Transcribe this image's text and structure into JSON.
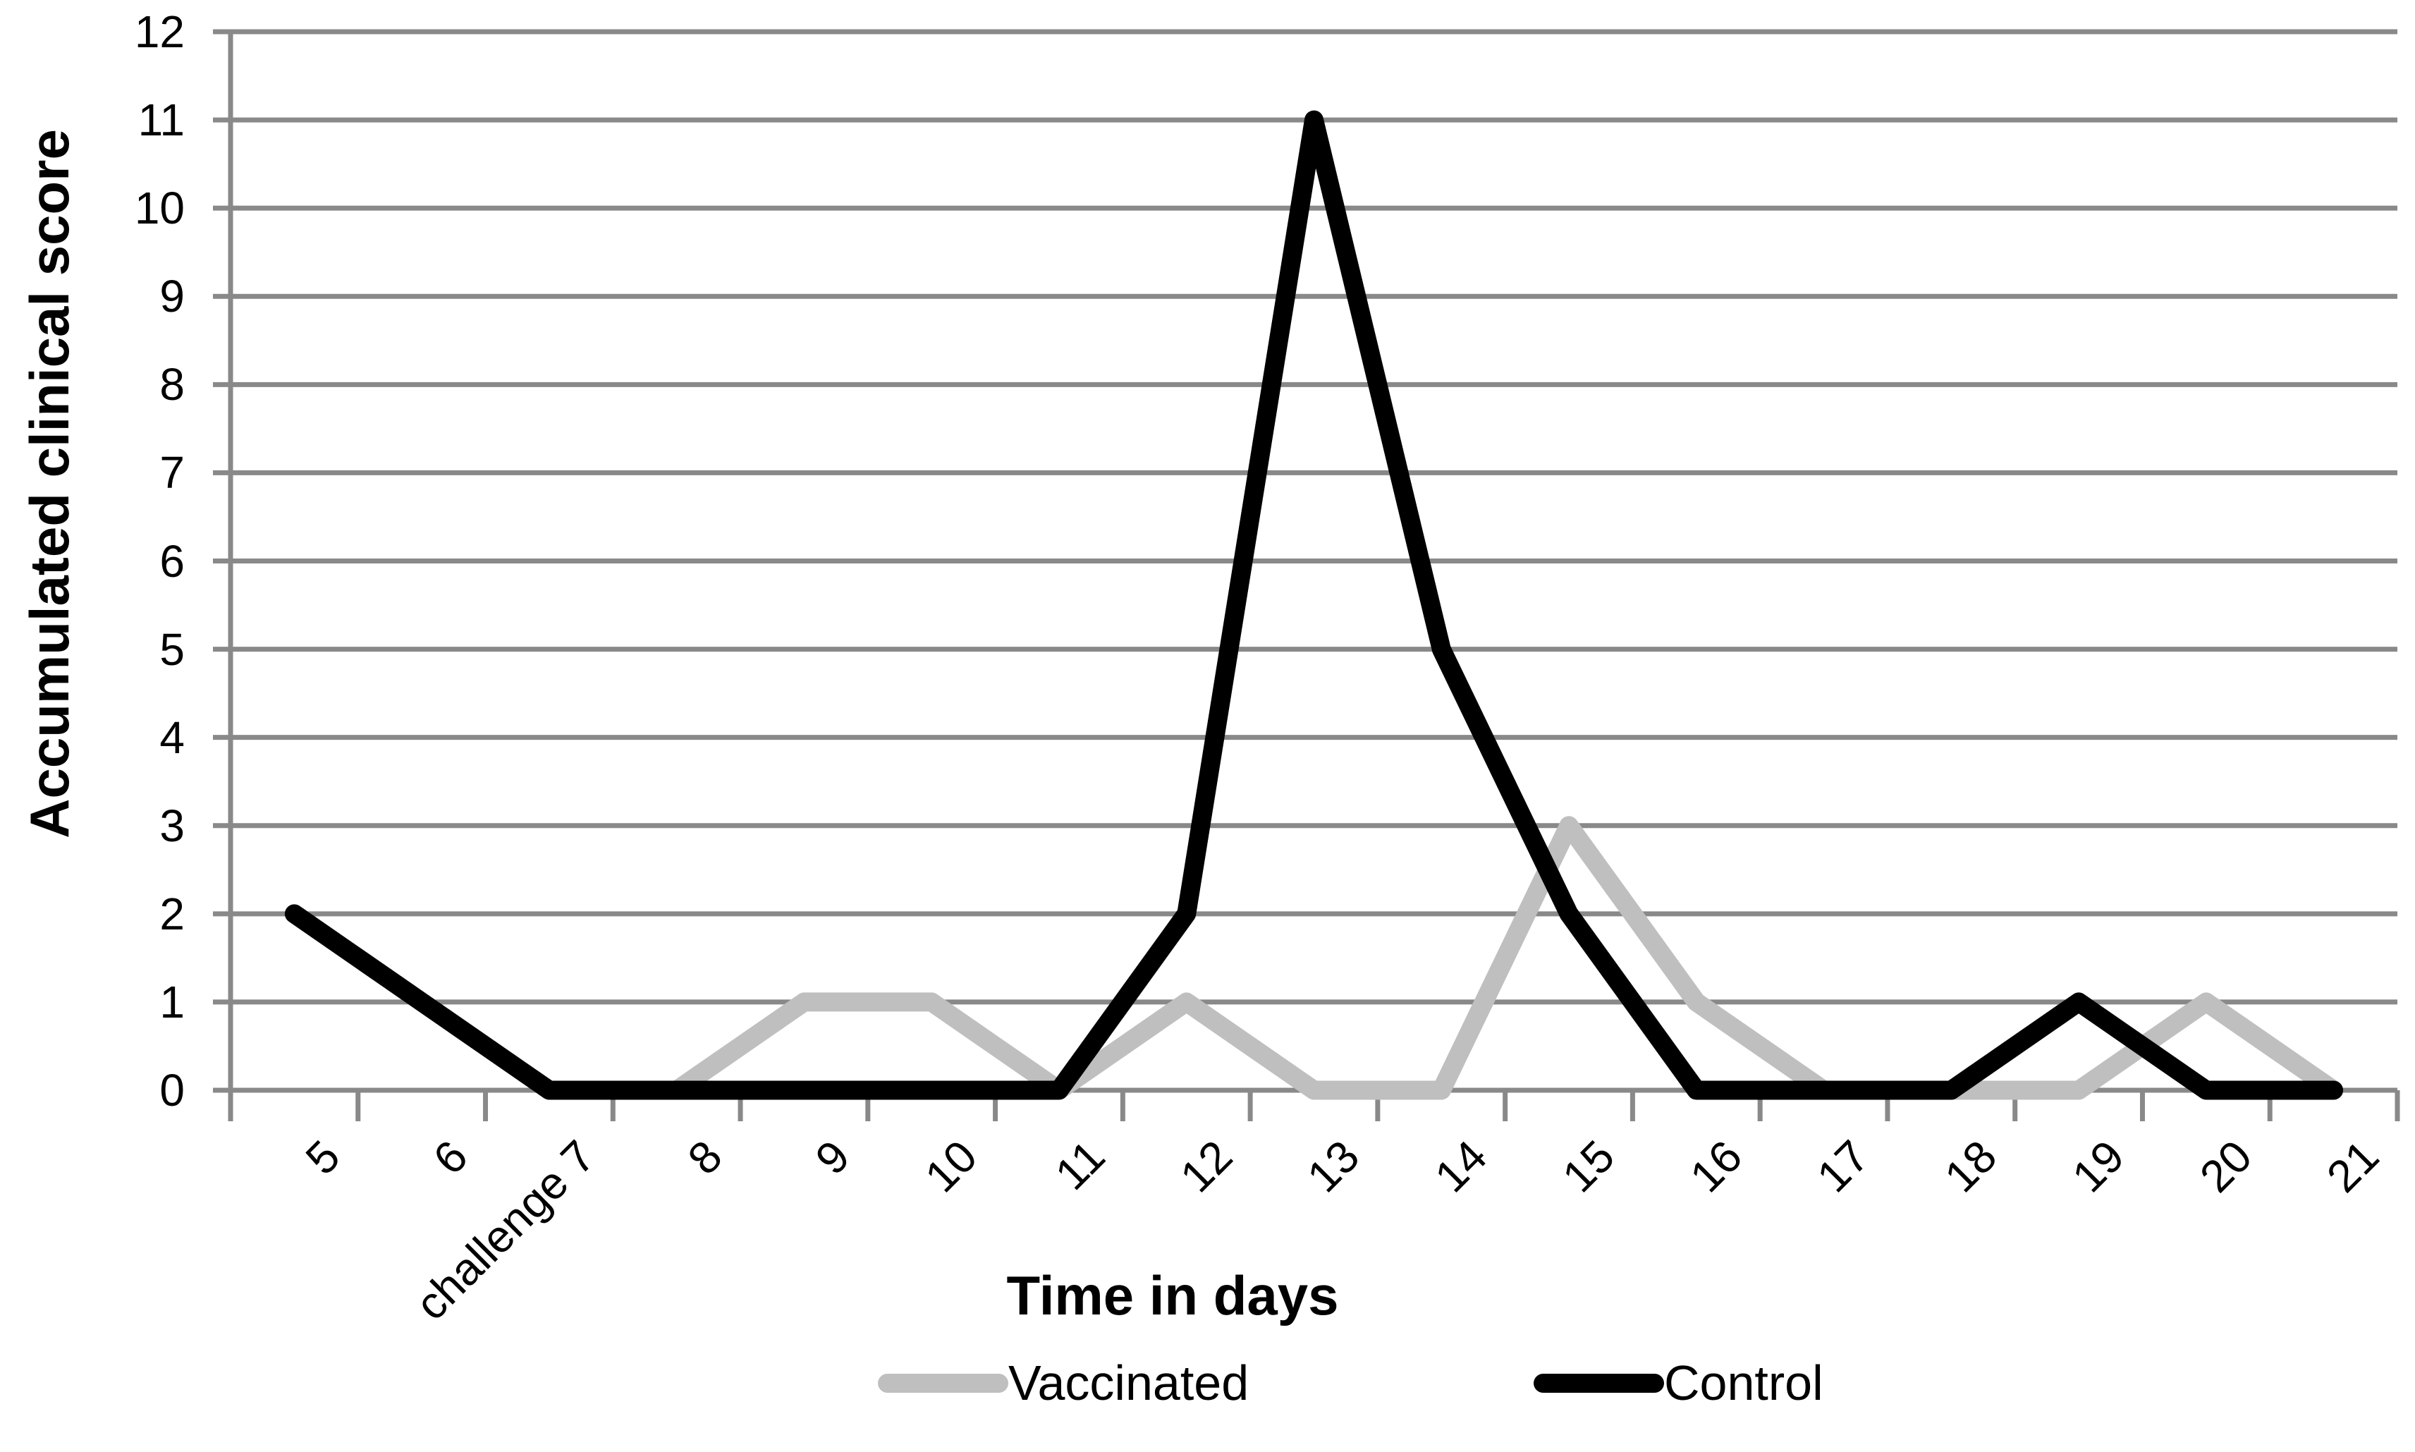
{
  "chart_data": {
    "type": "line",
    "title": "",
    "xlabel": "Time in days",
    "ylabel": "Accumulated clinical score",
    "categories": [
      "5",
      "6",
      "challenge 7",
      "8",
      "9",
      "10",
      "11",
      "12",
      "13",
      "14",
      "15",
      "16",
      "17",
      "18",
      "19",
      "20",
      "21"
    ],
    "y_ticks": [
      0,
      1,
      2,
      3,
      4,
      5,
      6,
      7,
      8,
      9,
      10,
      11,
      12
    ],
    "ylim": [
      0,
      12
    ],
    "grid": "horizontal gridlines at every integer score",
    "legend_position": "bottom",
    "series": [
      {
        "name": "Vaccinated",
        "color": "#bfbfbf",
        "start_index": 3,
        "values": [
          0,
          1,
          1,
          0,
          1,
          0,
          0,
          3,
          1,
          0,
          0,
          0,
          1,
          0
        ]
      },
      {
        "name": "Control",
        "color": "#000000",
        "start_index": 0,
        "values": [
          2,
          1,
          0,
          0,
          0,
          0,
          0,
          2,
          11,
          5,
          2,
          0,
          0,
          0,
          1,
          0,
          0
        ]
      }
    ]
  },
  "colors": {
    "gridline": "#898989",
    "axis": "#898989",
    "text": "#000000",
    "background": "#ffffff"
  }
}
